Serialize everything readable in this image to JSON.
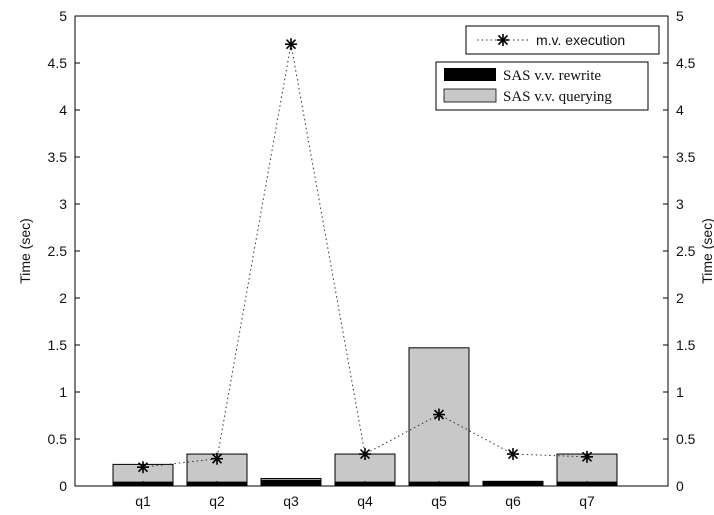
{
  "chart_data": {
    "type": "bar",
    "categories": [
      "q1",
      "q2",
      "q3",
      "q4",
      "q5",
      "q6",
      "q7"
    ],
    "series": [
      {
        "name": "SAS v.v. rewrite",
        "kind": "stacked-bar",
        "color": "#000000",
        "values": [
          0.04,
          0.04,
          0.06,
          0.04,
          0.04,
          0.05,
          0.04
        ]
      },
      {
        "name": "SAS v.v. querying",
        "kind": "stacked-bar",
        "color": "#c8c8c8",
        "values": [
          0.19,
          0.3,
          0.02,
          0.3,
          1.43,
          0.0,
          0.3
        ]
      },
      {
        "name": "m.v. execution",
        "kind": "line",
        "marker": "asterisk",
        "line_style": "dotted",
        "values": [
          0.2,
          0.29,
          4.7,
          0.34,
          0.76,
          0.34,
          0.31
        ]
      }
    ],
    "ylabel": "Time (sec)",
    "ylabel_right": "Time (sec)",
    "ylim": [
      0,
      5
    ],
    "yticks": [
      "0",
      "0.5",
      "1",
      "1.5",
      "2",
      "2.5",
      "3",
      "3.5",
      "4",
      "4.5",
      "5"
    ],
    "grid": false,
    "legend_placement": "top-right"
  }
}
